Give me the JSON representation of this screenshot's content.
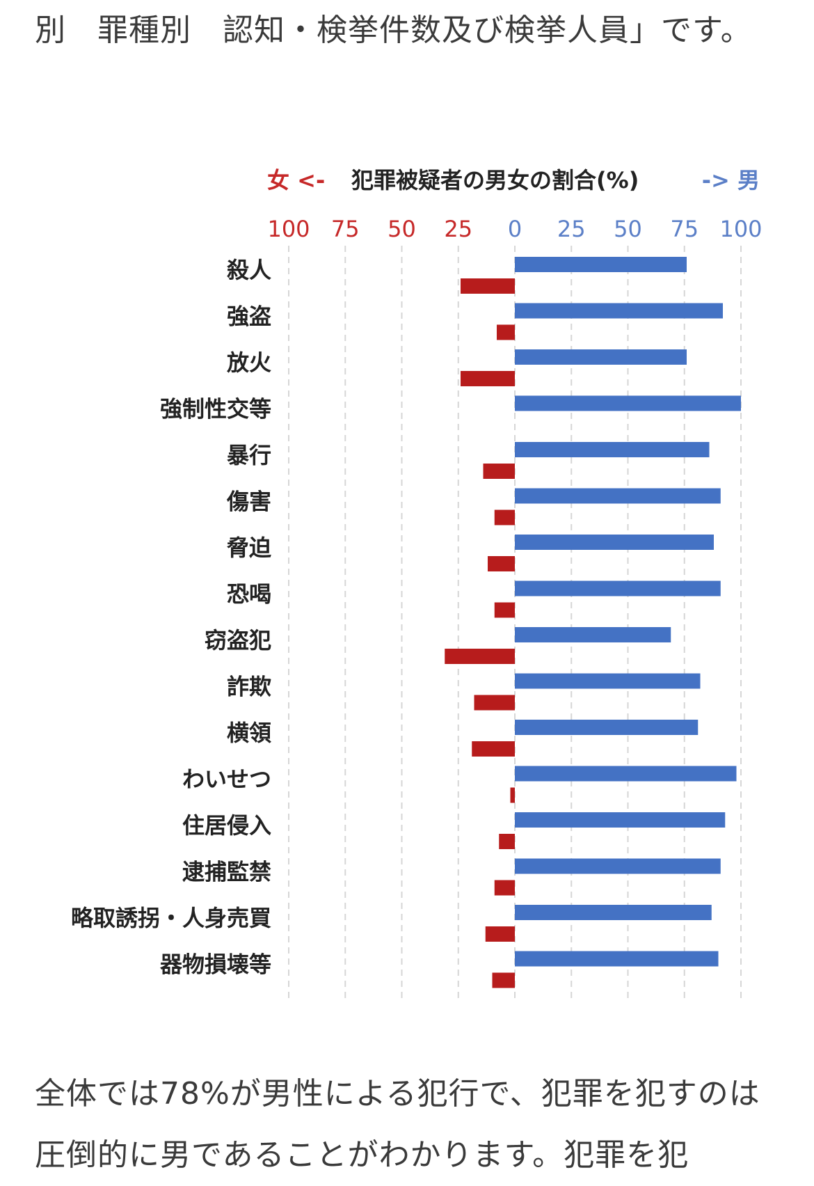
{
  "text": {
    "top_paragraph": "別　罪種別　認知・検挙件数及び検挙人員」です。",
    "bottom_paragraph": "全体では78%が男性による犯行で、犯罪を犯すのは圧倒的に男であることがわかります。犯罪を犯"
  },
  "chart_data": {
    "type": "bar",
    "title": "犯罪被疑者の男女の割合(%)",
    "left_label": "女 <-",
    "right_label": "-> 男",
    "female_ticks": [
      "100",
      "75",
      "50",
      "25"
    ],
    "male_ticks": [
      "0",
      "25",
      "50",
      "75",
      "100"
    ],
    "xlim": [
      -100,
      100
    ],
    "grid": true,
    "colors": {
      "female": "#b71c1c",
      "male": "#4472c4",
      "female_text": "#c62828",
      "male_text": "#5b7fc7"
    },
    "categories": [
      "殺人",
      "強盗",
      "放火",
      "強制性交等",
      "暴行",
      "傷害",
      "脅迫",
      "恐喝",
      "窃盗犯",
      "詐欺",
      "横領",
      "わいせつ",
      "住居侵入",
      "逮捕監禁",
      "略取誘拐・人身売買",
      "器物損壊等"
    ],
    "series": [
      {
        "name": "男",
        "values": [
          76,
          92,
          76,
          100,
          86,
          91,
          88,
          91,
          69,
          82,
          81,
          98,
          93,
          91,
          87,
          90
        ]
      },
      {
        "name": "女",
        "values": [
          24,
          8,
          24,
          0,
          14,
          9,
          12,
          9,
          31,
          18,
          19,
          2,
          7,
          9,
          13,
          10
        ]
      }
    ]
  }
}
